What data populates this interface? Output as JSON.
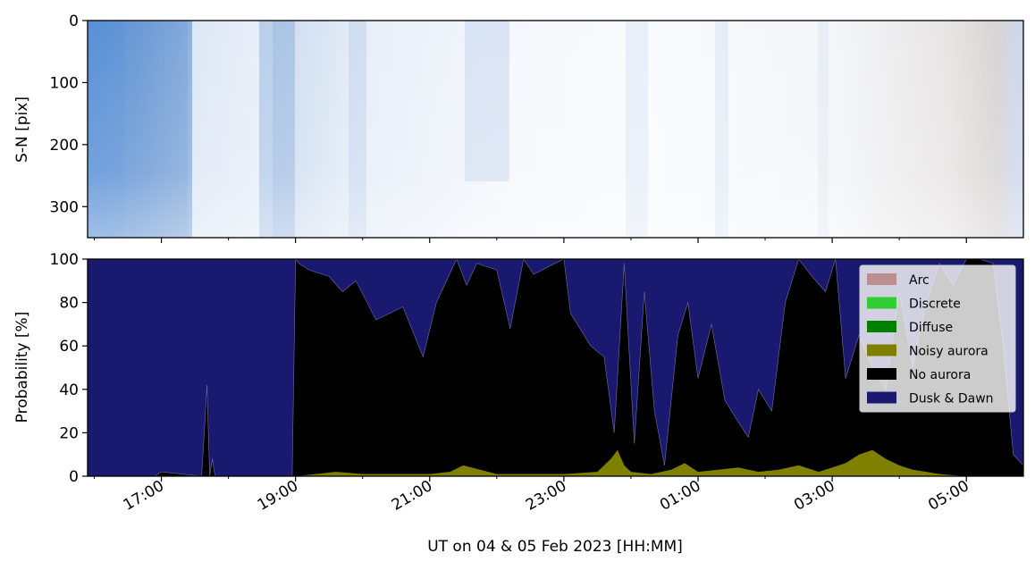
{
  "chart_data": [
    {
      "type": "heatmap",
      "title": "",
      "ylabel": "S-N [pix]",
      "y_ticks": [
        0,
        100,
        200,
        300
      ],
      "ylim": [
        350,
        0
      ],
      "description_colors": {
        "dark": "#3f7fd0",
        "light": "#eef3fa",
        "white": "#ffffff",
        "end": "#cfcccc"
      }
    },
    {
      "type": "area",
      "title": "",
      "ylabel": "Probability [%]",
      "xlabel": "UT on 04 & 05 Feb 2023 [HH:MM]",
      "ylim": [
        0,
        100
      ],
      "y_ticks": [
        0,
        20,
        40,
        60,
        80,
        100
      ],
      "x_ticks": [
        {
          "hour": 17,
          "label": "17:00"
        },
        {
          "hour": 19,
          "label": "19:00"
        },
        {
          "hour": 21,
          "label": "21:00"
        },
        {
          "hour": 23,
          "label": "23:00"
        },
        {
          "hour": 25,
          "label": "01:00"
        },
        {
          "hour": 27,
          "label": "03:00"
        },
        {
          "hour": 29,
          "label": "05:00"
        }
      ],
      "x_minor_hours": [
        16,
        18,
        20,
        22,
        24,
        26,
        28
      ],
      "xlim_hours": [
        15.9,
        29.85
      ],
      "legend_position": "top-right",
      "series": [
        {
          "name": "Arc",
          "color": "#bc8f8f"
        },
        {
          "name": "Discrete",
          "color": "#32cd32"
        },
        {
          "name": "Diffuse",
          "color": "#008000"
        },
        {
          "name": "Noisy aurora",
          "color": "#808000"
        },
        {
          "name": "No aurora",
          "color": "#000000"
        },
        {
          "name": "Dusk & Dawn",
          "color": "#191970"
        }
      ],
      "no_aurora_cumulative": {
        "hours": [
          15.9,
          16.9,
          17.0,
          17.6,
          17.68,
          17.72,
          17.76,
          17.8,
          18.95,
          19.0,
          19.05,
          19.2,
          19.5,
          19.7,
          19.9,
          20.2,
          20.6,
          20.9,
          21.1,
          21.4,
          21.55,
          21.7,
          22.0,
          22.2,
          22.4,
          22.55,
          22.8,
          23.0,
          23.1,
          23.4,
          23.6,
          23.75,
          23.9,
          24.05,
          24.2,
          24.35,
          24.5,
          24.7,
          24.85,
          25.0,
          25.2,
          25.4,
          25.6,
          25.75,
          25.9,
          26.1,
          26.3,
          26.5,
          26.7,
          26.9,
          27.05,
          27.2,
          27.4,
          27.6,
          27.8,
          28.0,
          28.2,
          28.4,
          28.6,
          28.8,
          29.0,
          29.2,
          29.4,
          29.55,
          29.7,
          29.85
        ],
        "values": [
          0,
          0,
          2,
          0,
          42,
          0,
          8,
          0,
          0,
          100,
          98,
          95,
          92,
          85,
          90,
          72,
          78,
          55,
          80,
          100,
          88,
          98,
          95,
          68,
          100,
          93,
          97,
          100,
          75,
          60,
          55,
          20,
          98,
          15,
          85,
          30,
          5,
          65,
          80,
          45,
          70,
          35,
          25,
          18,
          40,
          30,
          80,
          100,
          92,
          85,
          100,
          45,
          65,
          50,
          40,
          85,
          50,
          80,
          98,
          88,
          100,
          100,
          98,
          60,
          10,
          5
        ]
      },
      "noisy_aurora": {
        "hours": [
          15.9,
          19.0,
          19.3,
          19.6,
          20.0,
          20.5,
          21.0,
          21.3,
          21.5,
          22.0,
          22.5,
          23.0,
          23.5,
          23.7,
          23.8,
          23.9,
          24.0,
          24.3,
          24.6,
          24.8,
          25.0,
          25.3,
          25.6,
          25.9,
          26.2,
          26.5,
          26.8,
          27.0,
          27.2,
          27.4,
          27.6,
          27.8,
          28.0,
          28.2,
          28.4,
          28.6,
          29.0,
          29.85
        ],
        "values": [
          0,
          0,
          1,
          2,
          1,
          1,
          1,
          2,
          5,
          1,
          1,
          1,
          2,
          8,
          12,
          5,
          2,
          1,
          3,
          6,
          2,
          3,
          4,
          2,
          3,
          5,
          2,
          4,
          6,
          10,
          12,
          8,
          5,
          3,
          2,
          1,
          0,
          0
        ]
      }
    }
  ]
}
